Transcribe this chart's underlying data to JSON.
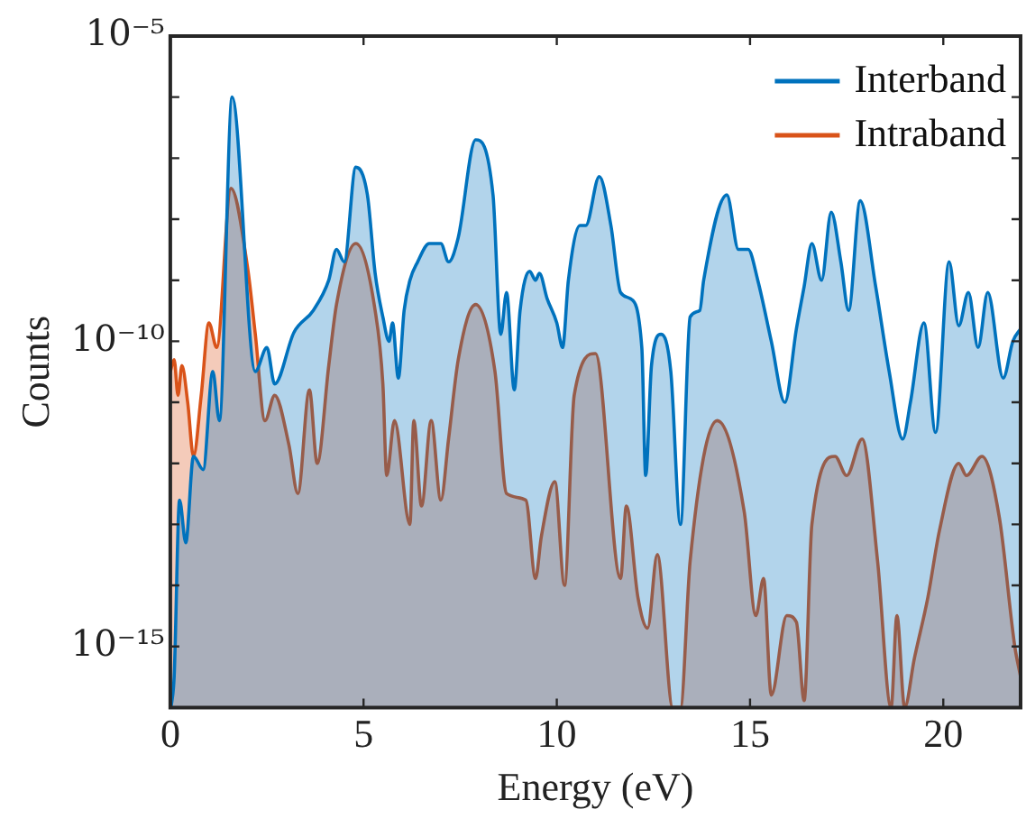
{
  "chart_data": {
    "type": "area",
    "xlabel": "Energy (eV)",
    "ylabel": "Counts",
    "log": "y",
    "grid": false,
    "legend": "top right",
    "xlim": [
      0,
      22
    ],
    "xticks": [
      0,
      5,
      10,
      15,
      20
    ],
    "ylim": [
      1e-16,
      1e-05
    ],
    "yticks": [
      {
        "value": 1e-05,
        "label": "10⁻⁵"
      },
      {
        "value": 1e-06,
        "label": null
      },
      {
        "value": 1e-07,
        "label": null
      },
      {
        "value": 1e-08,
        "label": null
      },
      {
        "value": 1e-09,
        "label": null
      },
      {
        "value": 1e-10,
        "label": "10⁻¹⁰"
      },
      {
        "value": 1e-11,
        "label": null
      },
      {
        "value": 1e-12,
        "label": null
      },
      {
        "value": 1e-13,
        "label": null
      },
      {
        "value": 1e-14,
        "label": null
      },
      {
        "value": 1e-15,
        "label": "10⁻¹⁵"
      },
      {
        "value": 1e-16,
        "label": null
      }
    ],
    "series": [
      {
        "name": "Interband",
        "color": "#0072bd",
        "x": [
          0.02,
          0.1,
          0.24,
          0.4,
          0.6,
          0.85,
          1.1,
          1.27,
          1.6,
          2.2,
          2.5,
          2.7,
          3.2,
          3.7,
          4.1,
          4.3,
          4.5,
          4.8,
          5.1,
          5.3,
          5.5,
          5.66,
          5.75,
          5.9,
          6.05,
          6.2,
          6.4,
          6.7,
          7.0,
          7.2,
          7.45,
          7.9,
          8.35,
          8.55,
          8.7,
          8.9,
          9.05,
          9.3,
          9.45,
          9.55,
          9.75,
          10.0,
          10.15,
          10.3,
          10.6,
          10.75,
          11.1,
          11.4,
          11.65,
          11.9,
          12.2,
          12.3,
          12.45,
          12.7,
          12.95,
          13.2,
          13.45,
          13.7,
          13.8,
          14.4,
          14.7,
          14.95,
          15.2,
          15.55,
          15.9,
          16.2,
          16.4,
          16.6,
          16.85,
          17.1,
          17.35,
          17.55,
          17.85,
          18.25,
          18.6,
          18.95,
          19.15,
          19.5,
          19.8,
          20.15,
          20.4,
          20.65,
          20.9,
          21.15,
          21.55,
          21.8,
          22
        ],
        "values": [
          1e-16,
          3.2e-16,
          2.5e-13,
          5e-14,
          1.3e-12,
          7.9e-13,
          3.2e-11,
          5e-12,
          1e-06,
          3.2e-11,
          7.9e-11,
          2e-11,
          1.4e-10,
          3.2e-10,
          1e-09,
          3.2e-09,
          2e-09,
          7.1e-08,
          2.5e-08,
          1.3e-09,
          2.5e-10,
          1e-10,
          2e-10,
          2.5e-11,
          3.2e-10,
          1e-09,
          2e-09,
          4e-09,
          4e-09,
          2e-09,
          5e-09,
          2e-07,
          2.5e-08,
          1.3e-10,
          6.3e-10,
          1.6e-11,
          3.2e-10,
          1.4e-09,
          1e-09,
          1.3e-09,
          5e-10,
          2e-10,
          7.9e-11,
          1e-09,
          7.9e-09,
          7.9e-09,
          5e-08,
          7.9e-09,
          6.3e-10,
          5e-10,
          7.9e-11,
          6.3e-13,
          4e-11,
          1.3e-10,
          3.2e-11,
          1e-13,
          2.5e-10,
          3.2e-10,
          1e-09,
          2.5e-08,
          3.2e-09,
          3.2e-09,
          1e-09,
          1e-10,
          1e-11,
          1.6e-10,
          7.9e-10,
          4e-09,
          1e-09,
          1.3e-08,
          2e-09,
          3.2e-10,
          2e-08,
          7.9e-10,
          3.2e-11,
          2.5e-12,
          1e-11,
          2e-10,
          3.2e-12,
          2e-09,
          1.8e-10,
          6.3e-10,
          7.9e-11,
          6.3e-10,
          2.5e-11,
          1e-10,
          1.6e-10
        ]
      },
      {
        "name": "Intraband",
        "color": "#d95319",
        "x": [
          0,
          0.1,
          0.2,
          0.3,
          0.45,
          0.6,
          0.8,
          1.0,
          1.2,
          1.57,
          2.0,
          2.2,
          2.45,
          2.7,
          3.07,
          3.3,
          3.6,
          3.8,
          4.1,
          4.3,
          4.8,
          5.3,
          5.5,
          5.6,
          5.8,
          6.2,
          6.3,
          6.5,
          6.75,
          7.0,
          7.2,
          7.45,
          7.9,
          8.4,
          8.7,
          9.2,
          9.45,
          9.6,
          9.95,
          10.2,
          10.45,
          11.0,
          11.65,
          11.8,
          12.1,
          12.35,
          12.6,
          13.0,
          13.2,
          13.45,
          14.15,
          14.85,
          15.15,
          15.35,
          15.55,
          15.95,
          16.2,
          16.4,
          16.6,
          17.2,
          17.5,
          17.9,
          18.3,
          18.65,
          18.8,
          19.0,
          19.25,
          19.6,
          19.9,
          20.4,
          20.6,
          21.0,
          21.45,
          21.85,
          22
        ],
        "values": [
          3.2e-11,
          5e-11,
          1.3e-11,
          4e-11,
          1e-11,
          1.3e-12,
          1.3e-11,
          2e-10,
          7.9e-11,
          3.2e-08,
          1.6e-09,
          1.3e-10,
          5e-12,
          1.3e-11,
          2e-12,
          3.2e-13,
          1.6e-11,
          1e-12,
          4e-11,
          4e-10,
          4e-09,
          3.2e-10,
          2e-11,
          6.3e-13,
          5e-12,
          1e-13,
          5e-12,
          2e-13,
          5e-12,
          2.5e-13,
          2.5e-12,
          5e-11,
          4e-10,
          3.2e-11,
          3.2e-13,
          2.5e-13,
          1.3e-14,
          6.3e-14,
          5e-13,
          1e-14,
          1.3e-11,
          6.3e-11,
          1.3e-14,
          2e-13,
          6.3e-15,
          2e-15,
          3.2e-14,
          1e-16,
          1e-16,
          2.5e-14,
          5e-12,
          1.6e-13,
          3.2e-15,
          1.3e-14,
          1.6e-16,
          3.2e-15,
          2.5e-15,
          1.3e-16,
          1e-13,
          1.3e-12,
          6.3e-13,
          2.5e-12,
          2.5e-14,
          1e-16,
          3.2e-15,
          1e-16,
          6.3e-16,
          6.3e-15,
          7.9e-14,
          1e-12,
          6.3e-13,
          1.3e-12,
          1.3e-13,
          1e-15,
          3.2e-16
        ]
      }
    ]
  }
}
